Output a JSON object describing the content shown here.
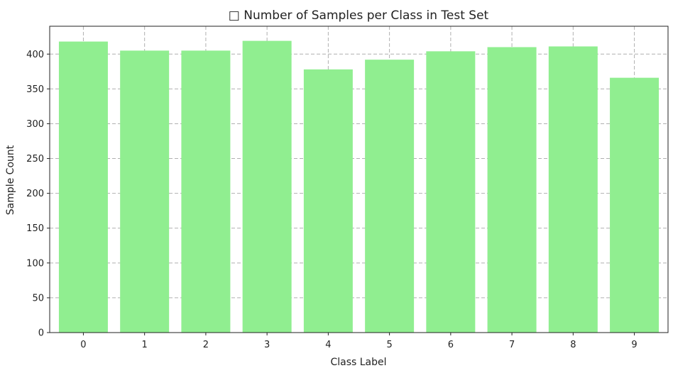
{
  "chart_data": {
    "type": "bar",
    "title": "□ Number of Samples per Class in Test Set",
    "xlabel": "Class Label",
    "ylabel": "Sample Count",
    "categories": [
      "0",
      "1",
      "2",
      "3",
      "4",
      "5",
      "6",
      "7",
      "8",
      "9"
    ],
    "values": [
      418,
      405,
      405,
      419,
      378,
      392,
      404,
      410,
      411,
      366
    ],
    "ylim": [
      0,
      440
    ],
    "yticks": [
      0,
      50,
      100,
      150,
      200,
      250,
      300,
      350,
      400
    ],
    "grid": true,
    "bar_color": "#90ee90"
  }
}
